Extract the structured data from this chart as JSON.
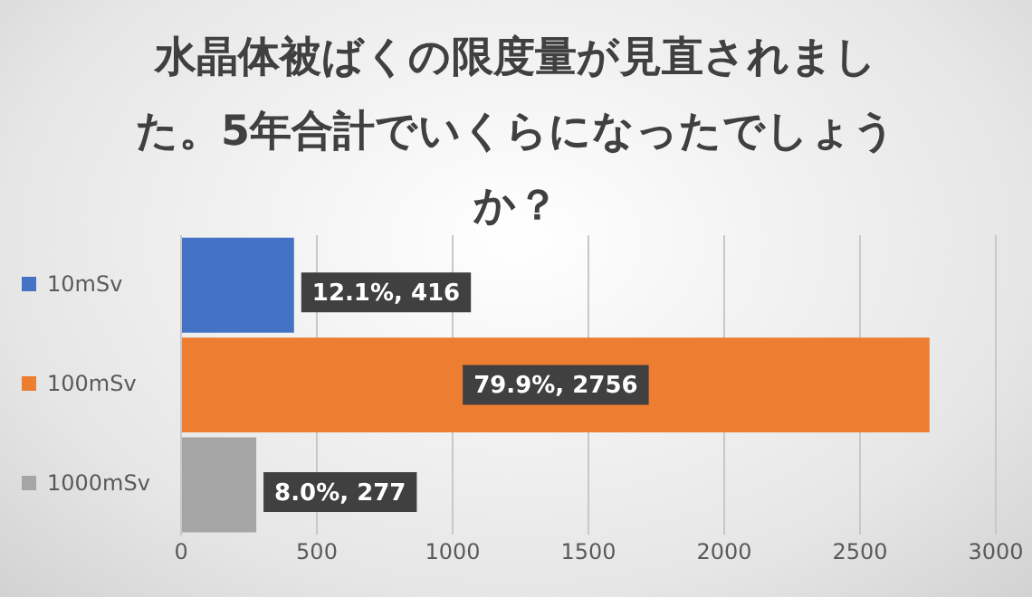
{
  "chart_data": {
    "type": "bar",
    "orientation": "horizontal",
    "title": "水晶体被ばくの限度量が見直されました。5年合計でいくらになったでしょうか？",
    "categories": [
      null,
      null,
      null
    ],
    "series": [
      {
        "name": "10mSv",
        "color": "#4472c4",
        "values": [
          416,
          null,
          null
        ],
        "value_labels": [
          "12.1%, 416",
          null,
          null
        ]
      },
      {
        "name": "100mSv",
        "color": "#ed7d31",
        "values": [
          null,
          2756,
          null
        ],
        "value_labels": [
          null,
          "79.9%, 2756",
          null
        ]
      },
      {
        "name": "1000mSv",
        "color": "#a5a5a5",
        "values": [
          null,
          null,
          277
        ],
        "value_labels": [
          null,
          null,
          "8.0%, 277"
        ]
      }
    ],
    "xlim": [
      0,
      3000
    ],
    "xticks": [
      0,
      500,
      1000,
      1500,
      2000,
      2500,
      3000
    ],
    "grid": "x",
    "legend": "left"
  }
}
